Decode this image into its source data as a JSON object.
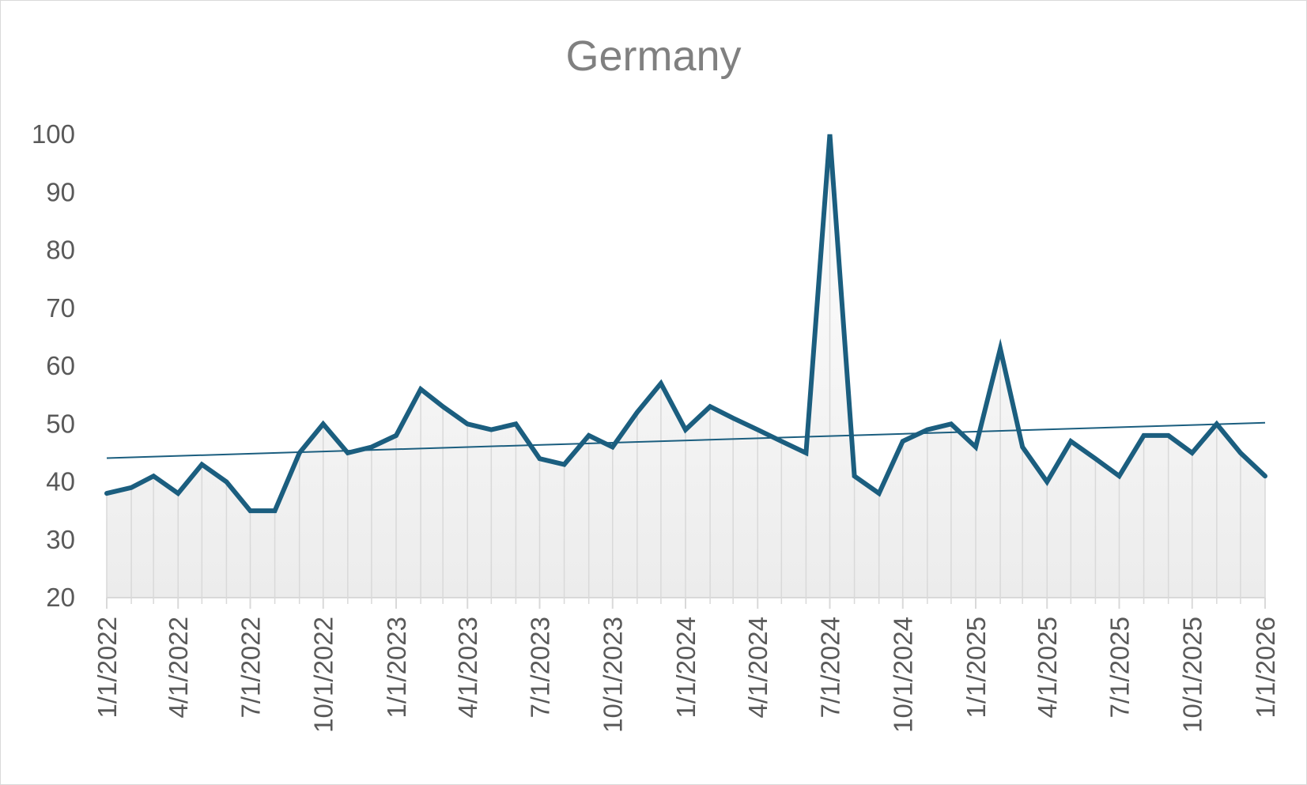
{
  "chart_data": {
    "type": "line",
    "title": "Germany",
    "xlabel": "",
    "ylabel": "",
    "ylim": [
      20,
      100
    ],
    "yticks": [
      20,
      30,
      40,
      50,
      60,
      70,
      80,
      90,
      100
    ],
    "x_axis": "date",
    "x_range": [
      "2022-01-01",
      "2026-01-01"
    ],
    "x_tick_labels": [
      "1/1/2022",
      "4/1/2022",
      "7/1/2022",
      "10/1/2022",
      "1/1/2023",
      "4/1/2023",
      "7/1/2023",
      "10/1/2023",
      "1/1/2024",
      "4/1/2024",
      "7/1/2024",
      "10/1/2024",
      "1/1/2025",
      "4/1/2025",
      "7/1/2025",
      "10/1/2025",
      "1/1/2026"
    ],
    "x_tick_dates": [
      "2022-01-01",
      "2022-04-01",
      "2022-07-01",
      "2022-10-01",
      "2023-01-01",
      "2023-04-01",
      "2023-07-01",
      "2023-10-01",
      "2024-01-01",
      "2024-04-01",
      "2024-07-01",
      "2024-10-01",
      "2025-01-01",
      "2025-04-01",
      "2025-07-01",
      "2025-10-01",
      "2026-01-01"
    ],
    "grid": false,
    "drop_lines": true,
    "area_fill": "gradient",
    "trendline": {
      "type": "linear",
      "start": 44.1,
      "end": 50.2
    },
    "colors": {
      "series": "#1b5e7f",
      "trendline": "#1b5e7f",
      "drop_line": "#d9d9d9",
      "axis": "#d9d9d9",
      "tick_text": "#595959",
      "title": "#808080",
      "fill_top": "#ffffff",
      "fill_bottom": "#ececec"
    },
    "series": [
      {
        "dates": [
          "2022-01-01",
          "2022-02-01",
          "2022-03-01",
          "2022-04-01",
          "2022-05-01",
          "2022-06-01",
          "2022-07-01",
          "2022-08-01",
          "2022-09-01",
          "2022-10-01",
          "2022-11-01",
          "2022-12-01",
          "2023-01-01",
          "2023-02-01",
          "2023-03-01",
          "2023-04-01",
          "2023-05-01",
          "2023-06-01",
          "2023-07-01",
          "2023-08-01",
          "2023-09-01",
          "2023-10-01",
          "2023-11-01",
          "2023-12-01",
          "2024-01-01",
          "2024-02-01",
          "2024-03-01",
          "2024-04-01",
          "2024-05-01",
          "2024-06-01",
          "2024-07-01",
          "2024-08-01",
          "2024-09-01",
          "2024-10-01",
          "2024-11-01",
          "2024-12-01",
          "2025-01-01",
          "2025-02-01",
          "2025-03-01",
          "2025-04-01",
          "2025-05-01",
          "2025-06-01",
          "2025-07-01",
          "2025-08-01",
          "2025-09-01",
          "2025-10-01",
          "2025-11-01",
          "2025-12-01",
          "2026-01-01"
        ],
        "values": [
          38,
          39,
          41,
          38,
          43,
          40,
          35,
          35,
          45,
          50,
          45,
          46,
          48,
          56,
          53,
          50,
          49,
          50,
          44,
          43,
          48,
          46,
          52,
          57,
          49,
          53,
          51,
          49,
          47,
          45,
          100,
          41,
          38,
          47,
          49,
          50,
          46,
          63,
          46,
          40,
          47,
          44,
          41,
          48,
          48,
          45,
          50,
          45,
          41
        ]
      }
    ]
  }
}
